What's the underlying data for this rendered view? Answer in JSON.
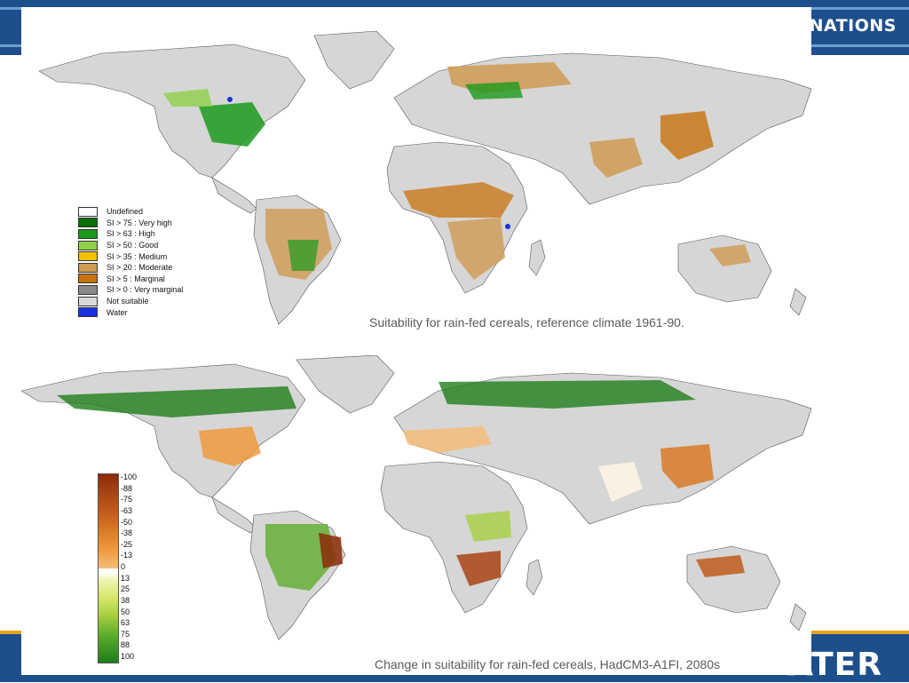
{
  "slide": {
    "header_brand": "D NATIONS",
    "footer_brand": "ATER"
  },
  "top_map": {
    "caption": "Suitability for rain-fed cereals, reference climate 1961-90.",
    "legend": [
      {
        "label": "Undefined",
        "color": "#ffffff"
      },
      {
        "label": "SI > 75 : Very high",
        "color": "#0a6e0a"
      },
      {
        "label": "SI > 63 : High",
        "color": "#1c9a1c"
      },
      {
        "label": "SI > 50 : Good",
        "color": "#8ed04a"
      },
      {
        "label": "SI > 35 : Medium",
        "color": "#f2c200"
      },
      {
        "label": "SI > 20 : Moderate",
        "color": "#cf9a52"
      },
      {
        "label": "SI >  5 : Marginal",
        "color": "#c8720c"
      },
      {
        "label": "SI >  0 : Very marginal",
        "color": "#8a8a8a"
      },
      {
        "label": "Not suitable",
        "color": "#d9d9d9"
      },
      {
        "label": "Water",
        "color": "#1a2fe0"
      }
    ]
  },
  "bottom_map": {
    "caption": "Change in suitability for rain-fed cereals, HadCM3-A1FI, 2080s",
    "colorbar_ticks": [
      "-100",
      "-88",
      "-75",
      "-63",
      "-50",
      "-38",
      "-25",
      "-13",
      "0",
      "13",
      "25",
      "38",
      "50",
      "63",
      "75",
      "88",
      "100"
    ]
  }
}
